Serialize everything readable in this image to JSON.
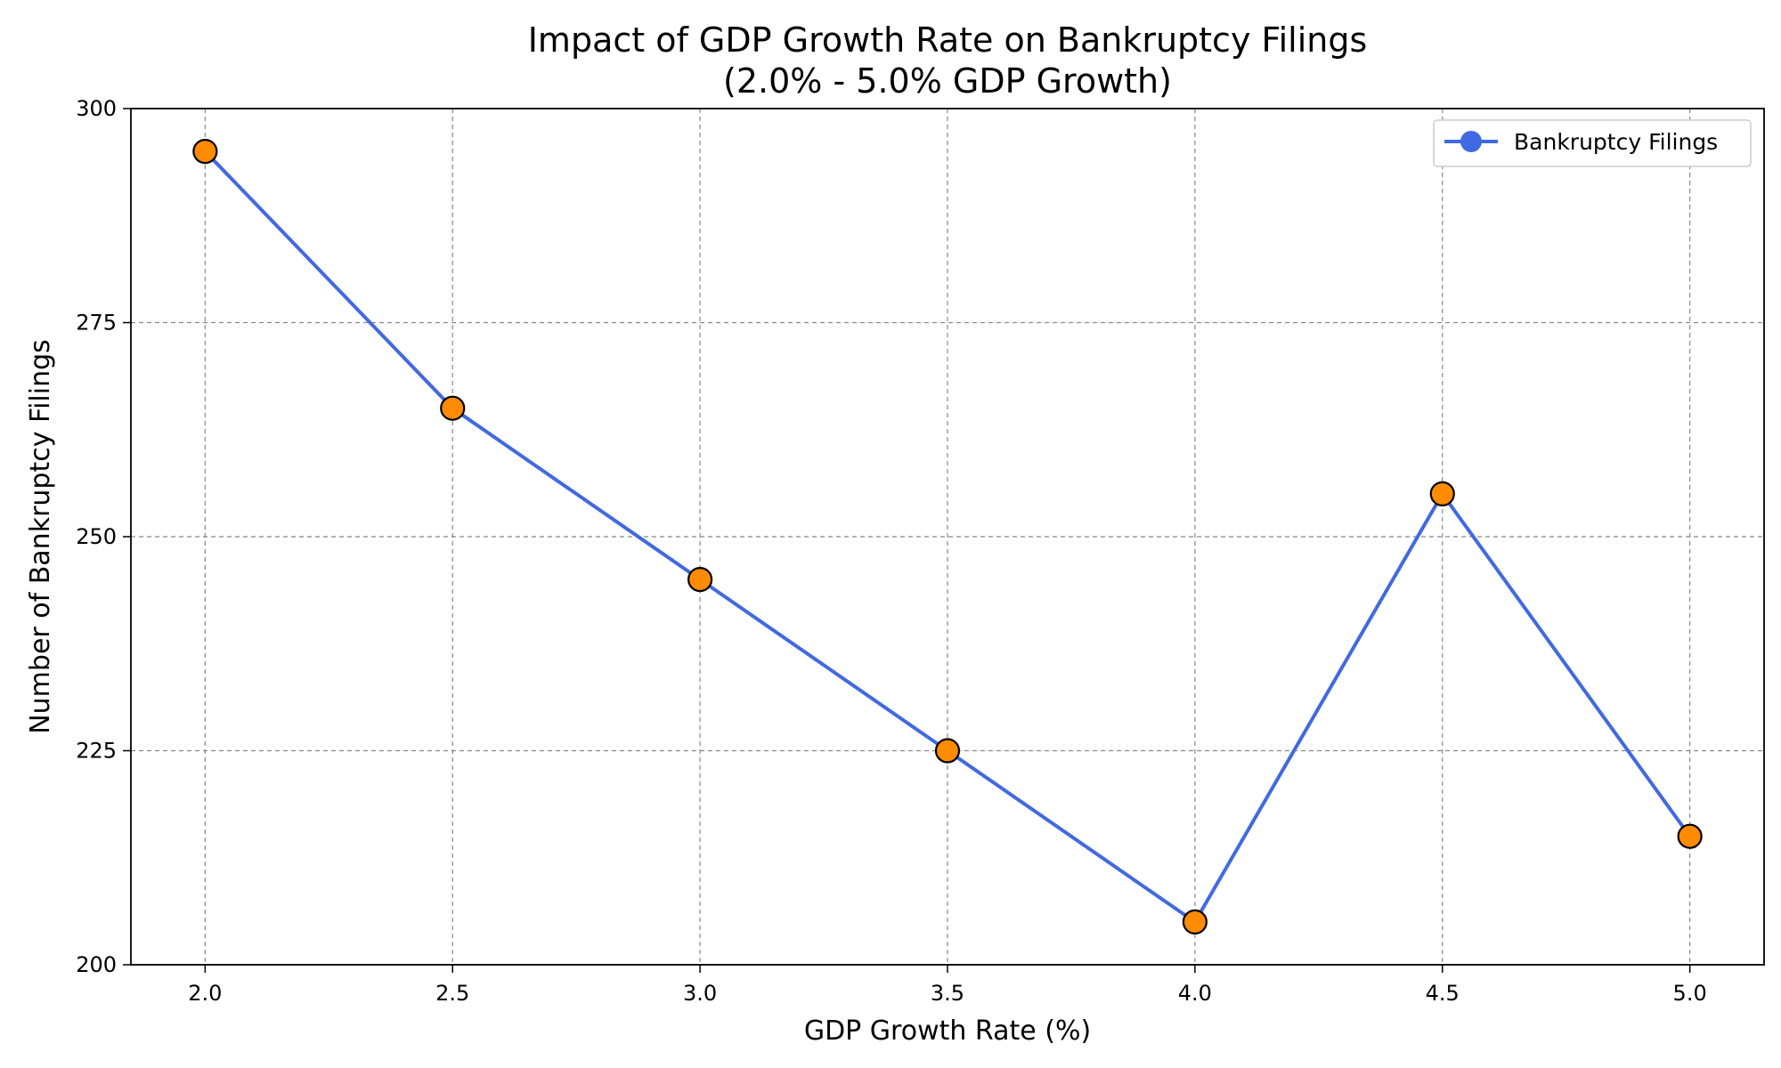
{
  "chart_data": {
    "type": "line",
    "title": "Impact of GDP Growth Rate on Bankruptcy Filings",
    "subtitle": "(2.0% - 5.0% GDP Growth)",
    "xlabel": "GDP Growth Rate (%)",
    "ylabel": "Number of Bankruptcy Filings",
    "x": [
      2.0,
      2.5,
      3.0,
      3.5,
      4.0,
      4.5,
      5.0
    ],
    "series": [
      {
        "name": "Bankruptcy Filings",
        "values": [
          295,
          265,
          245,
          225,
          205,
          255,
          215
        ],
        "line_color": "#4169e1",
        "marker_color": "#ff8c00",
        "marker_edge_color": "#000000"
      }
    ],
    "xlim": [
      1.85,
      5.15
    ],
    "ylim": [
      200,
      300
    ],
    "xticks": [
      "2.0",
      "2.5",
      "3.0",
      "3.5",
      "4.0",
      "4.5",
      "5.0"
    ],
    "yticks": [
      "200",
      "225",
      "250",
      "275",
      "300"
    ],
    "grid": true,
    "grid_style": "dashed",
    "grid_color": "#888888",
    "legend_position": "top-right"
  }
}
